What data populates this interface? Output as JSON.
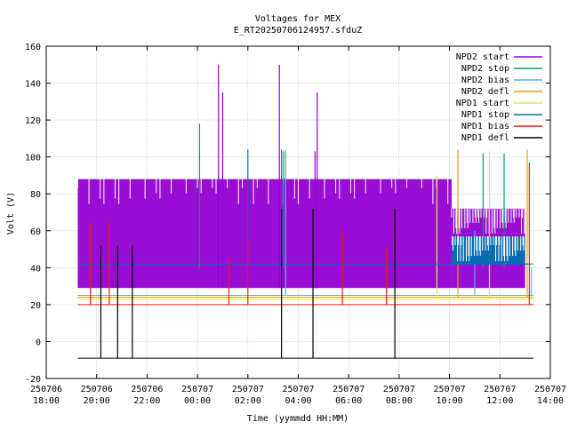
{
  "chart_data": {
    "type": "line",
    "title": "Voltages for MEX",
    "subtitle": "E_RT20250706124957.sfduZ",
    "xlabel": "Time (yymmdd HH:MM)",
    "ylabel": "Volt (V)",
    "ylim": [
      -20,
      160
    ],
    "yticks": [
      -20,
      0,
      20,
      40,
      60,
      80,
      100,
      120,
      140,
      160
    ],
    "xlim": [
      "2025-07-06 18:00",
      "2025-07-07 14:00"
    ],
    "xticks": [
      {
        "x": "2025-07-06 18:00",
        "date": "250706",
        "time": "18:00"
      },
      {
        "x": "2025-07-06 20:00",
        "date": "250706",
        "time": "20:00"
      },
      {
        "x": "2025-07-06 22:00",
        "date": "250706",
        "time": "22:00"
      },
      {
        "x": "2025-07-07 00:00",
        "date": "250707",
        "time": "00:00"
      },
      {
        "x": "2025-07-07 02:00",
        "date": "250707",
        "time": "02:00"
      },
      {
        "x": "2025-07-07 04:00",
        "date": "250707",
        "time": "04:00"
      },
      {
        "x": "2025-07-07 06:00",
        "date": "250707",
        "time": "06:00"
      },
      {
        "x": "2025-07-07 08:00",
        "date": "250707",
        "time": "08:00"
      },
      {
        "x": "2025-07-07 10:00",
        "date": "250707",
        "time": "10:00"
      },
      {
        "x": "2025-07-07 12:00",
        "date": "250707",
        "time": "12:00"
      },
      {
        "x": "2025-07-07 14:00",
        "date": "250707",
        "time": "14:00"
      }
    ],
    "grid": true,
    "legend_position": "top-right",
    "series": [
      {
        "name": "NPD2 start",
        "color": "#9400d3",
        "bands": [
          {
            "x_start": "2025-07-06 19:15",
            "x_end": "2025-07-07 10:05",
            "low": 29,
            "high": 88
          },
          {
            "x_start": "2025-07-07 10:05",
            "x_end": "2025-07-07 13:00",
            "low": 29,
            "high": 72
          }
        ],
        "spikes": [
          {
            "x": "2025-07-07 00:50",
            "y": 150
          },
          {
            "x": "2025-07-07 03:15",
            "y": 150
          },
          {
            "x": "2025-07-07 01:00",
            "y": 135
          },
          {
            "x": "2025-07-07 04:45",
            "y": 135
          },
          {
            "x": "2025-07-07 04:40",
            "y": 103
          }
        ]
      },
      {
        "name": "NPD2 stop",
        "color": "#009e73",
        "points": [
          {
            "x": "2025-07-07 00:05",
            "y": 118
          },
          {
            "x": "2025-07-07 03:25",
            "y": 103
          },
          {
            "x": "2025-07-07 11:20",
            "y": 102
          },
          {
            "x": "2025-07-07 12:10",
            "y": 102
          }
        ]
      },
      {
        "name": "NPD2 bias",
        "color": "#56b4e9",
        "baseline": 25,
        "spikes": [
          {
            "x": "2025-07-07 03:30",
            "y": 104
          },
          {
            "x": "2025-07-07 11:00",
            "y": 60
          },
          {
            "x": "2025-07-07 13:15",
            "y": 40
          }
        ]
      },
      {
        "name": "NPD2 defl",
        "color": "#e69f00",
        "baseline": 24,
        "spikes": [
          {
            "x": "2025-07-07 10:20",
            "y": 104
          },
          {
            "x": "2025-07-07 13:05",
            "y": 104
          }
        ]
      },
      {
        "name": "NPD1 start",
        "color": "#f0e442",
        "baseline": 23,
        "spikes": [
          {
            "x": "2025-07-07 09:30",
            "y": 90
          },
          {
            "x": "2025-07-07 11:35",
            "y": 103
          }
        ]
      },
      {
        "name": "NPD1 stop",
        "color": "#0072b2",
        "baseline": 42,
        "bands": [
          {
            "x_start": "2025-07-07 10:05",
            "x_end": "2025-07-07 13:00",
            "low": 42,
            "high": 57
          }
        ],
        "spikes": [
          {
            "x": "2025-07-07 02:00",
            "y": 104
          },
          {
            "x": "2025-07-07 03:20",
            "y": 104
          }
        ]
      },
      {
        "name": "NPD1 bias",
        "color": "#e51e10",
        "baseline": 20,
        "spikes": [
          {
            "x": "2025-07-06 19:45",
            "y": 65
          },
          {
            "x": "2025-07-06 20:30",
            "y": 65
          },
          {
            "x": "2025-07-07 01:15",
            "y": 45
          },
          {
            "x": "2025-07-07 02:00",
            "y": 55
          },
          {
            "x": "2025-07-07 05:45",
            "y": 60
          },
          {
            "x": "2025-07-07 07:30",
            "y": 50
          },
          {
            "x": "2025-07-07 13:10",
            "y": 97
          }
        ]
      },
      {
        "name": "NPD1 defl",
        "color": "#000000",
        "baseline": -9,
        "spikes": [
          {
            "x": "2025-07-06 20:10",
            "y": 52
          },
          {
            "x": "2025-07-06 20:50",
            "y": 52
          },
          {
            "x": "2025-07-06 21:25",
            "y": 52
          },
          {
            "x": "2025-07-07 03:20",
            "y": 72
          },
          {
            "x": "2025-07-07 04:35",
            "y": 72
          },
          {
            "x": "2025-07-07 07:50",
            "y": 72
          }
        ]
      }
    ]
  }
}
